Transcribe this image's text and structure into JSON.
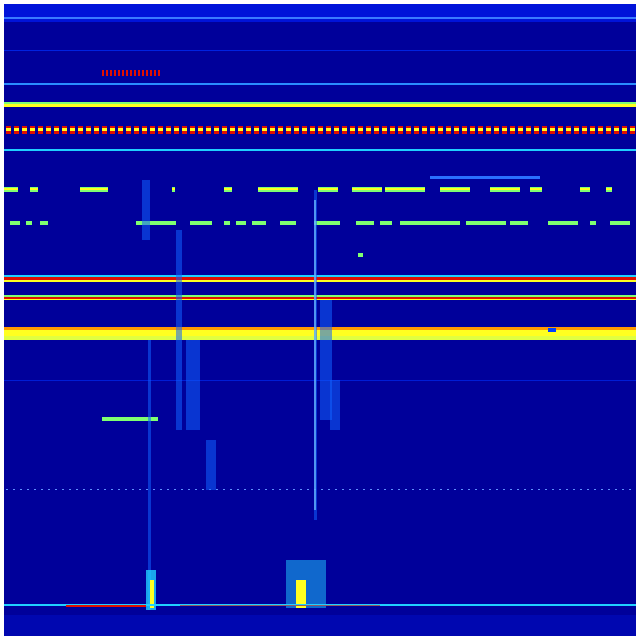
{
  "image": {
    "kind": "spectrogram-heatmap",
    "colormap": "jet",
    "colors": {
      "background": "#00009a",
      "top_glow": "#0018e8",
      "faint_line": "#0030ff",
      "cyan": "#20d0ff",
      "green": "#80ff70",
      "yellow": "#ffff20",
      "orange": "#ff9a00",
      "red": "#e01000",
      "streak": "#1060ff"
    }
  }
}
